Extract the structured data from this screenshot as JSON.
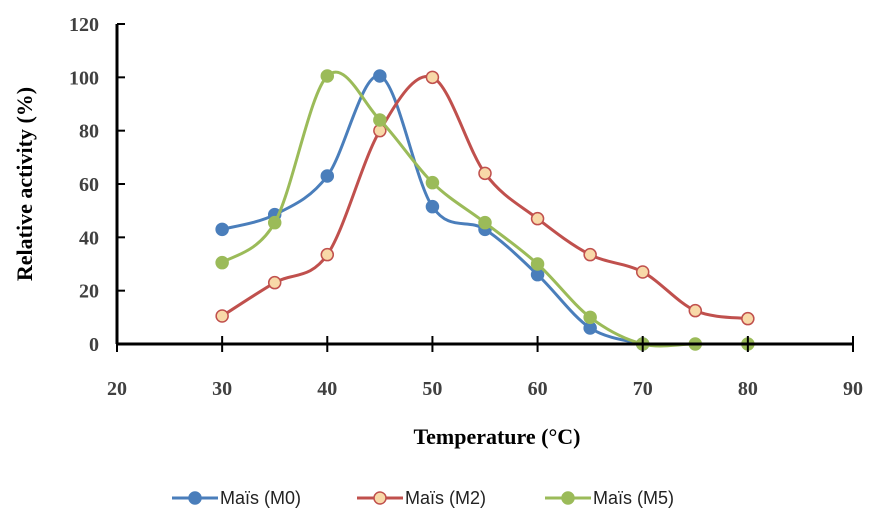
{
  "chart_data": {
    "type": "line",
    "title": "",
    "xlabel": "Temperature  (°C)",
    "ylabel": "Relative activity  (%)",
    "xlim": [
      20,
      90
    ],
    "ylim": [
      0,
      120
    ],
    "xticks": [
      20,
      30,
      40,
      50,
      60,
      70,
      80,
      90
    ],
    "yticks": [
      0,
      20,
      40,
      60,
      80,
      100,
      120
    ],
    "grid": false,
    "legend_position": "bottom",
    "smooth": true,
    "series": [
      {
        "name": "Maïs (M0)",
        "color": "#4A7EBB",
        "marker_fill": "#4A7EBB",
        "x": [
          30,
          35,
          40,
          45,
          50,
          55,
          60,
          65,
          70
        ],
        "y": [
          43,
          48.5,
          63,
          100.5,
          51.5,
          43,
          26,
          6,
          0
        ]
      },
      {
        "name": "Maïs (M2)",
        "color": "#C0504D",
        "marker_fill": "#F8D9A8",
        "x": [
          30,
          35,
          40,
          45,
          50,
          55,
          60,
          65,
          70,
          75,
          80
        ],
        "y": [
          10.5,
          23,
          33.5,
          80,
          100,
          64,
          47,
          33.5,
          27,
          12.5,
          9.5
        ]
      },
      {
        "name": "Maïs (M5)",
        "color": "#9BBB59",
        "marker_fill": "#9BBB59",
        "x": [
          30,
          35,
          40,
          45,
          50,
          55,
          60,
          65,
          70,
          75,
          80
        ],
        "y": [
          30.5,
          45.5,
          100.5,
          84,
          60.5,
          45.5,
          30,
          10,
          0,
          0,
          0
        ]
      }
    ]
  }
}
